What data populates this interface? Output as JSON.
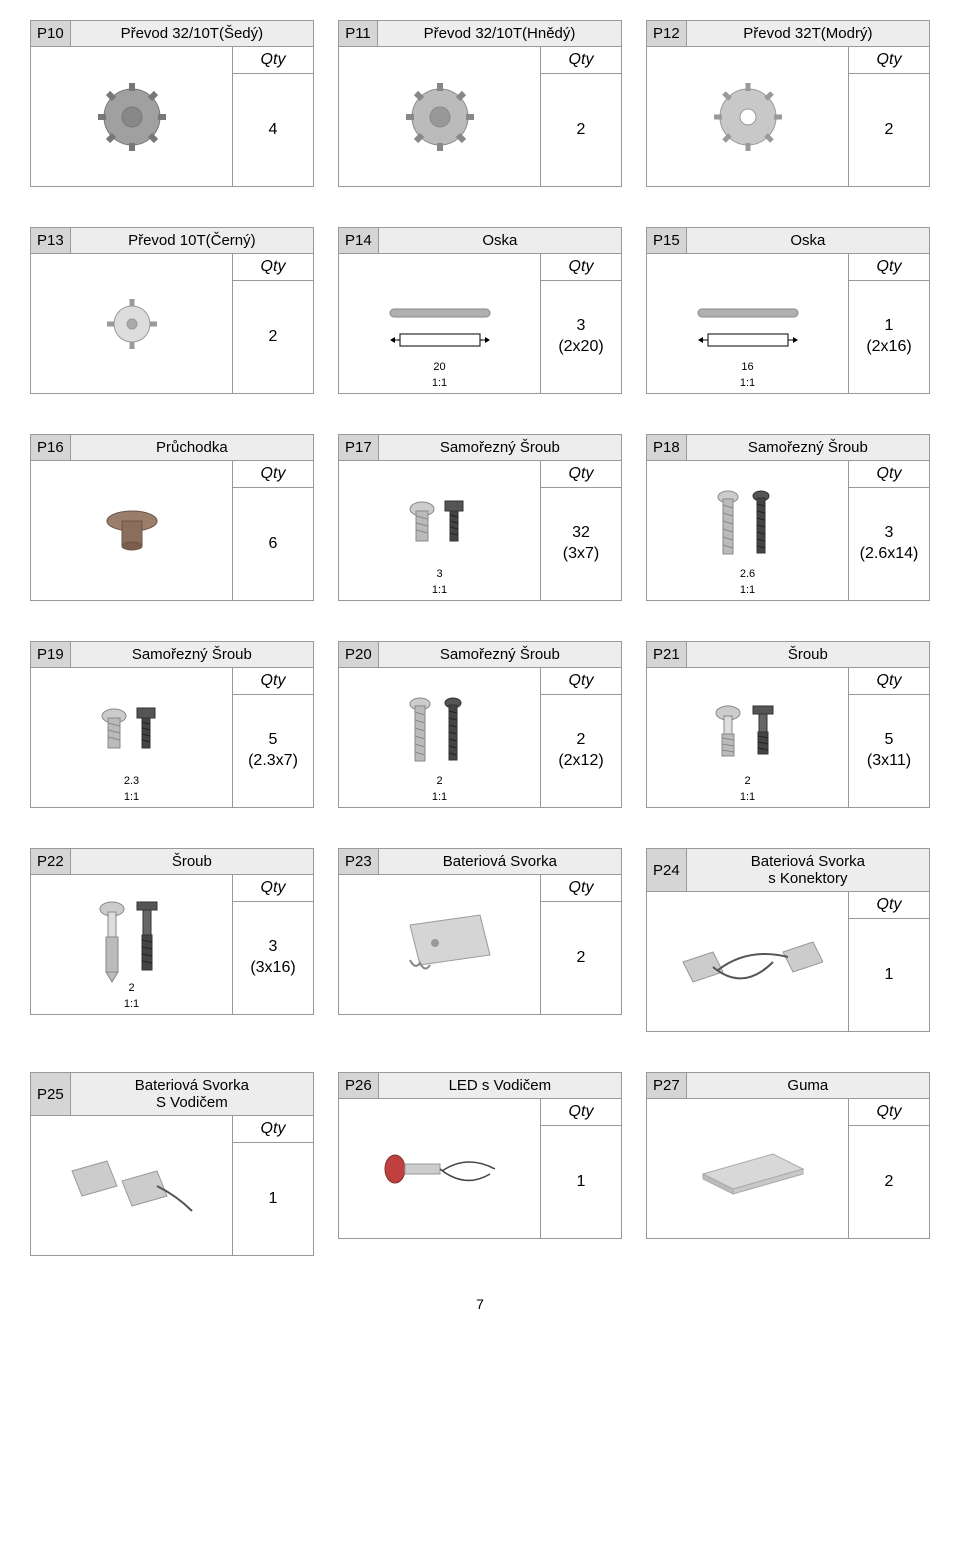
{
  "qty_label": "Qty",
  "page_number": "7",
  "parts": [
    {
      "id": "P10",
      "title": "Převod 32/10T(Šedý)",
      "qty": "4",
      "icon": "gear-gray",
      "dim": "",
      "scale": ""
    },
    {
      "id": "P11",
      "title": "Převod 32/10T(Hnědý)",
      "qty": "2",
      "icon": "gear-brown",
      "dim": "",
      "scale": ""
    },
    {
      "id": "P12",
      "title": "Převod 32T(Modrý)",
      "qty": "2",
      "icon": "gear-blue",
      "dim": "",
      "scale": ""
    },
    {
      "id": "P13",
      "title": "Převod 10T(Černý)",
      "qty": "2",
      "icon": "gear-small",
      "dim": "",
      "scale": ""
    },
    {
      "id": "P14",
      "title": "Oska",
      "qty": "3\n(2x20)",
      "icon": "axle",
      "dim": "20",
      "scale": "1:1"
    },
    {
      "id": "P15",
      "title": "Oska",
      "qty": "1\n(2x16)",
      "icon": "axle",
      "dim": "16",
      "scale": "1:1"
    },
    {
      "id": "P16",
      "title": "Průchodka",
      "qty": "6",
      "icon": "grommet",
      "dim": "",
      "scale": ""
    },
    {
      "id": "P17",
      "title": "Samořezný Šroub",
      "qty": "32\n(3x7)",
      "icon": "screw",
      "dim": "3",
      "scale": "1:1"
    },
    {
      "id": "P18",
      "title": "Samořezný Šroub",
      "qty": "3\n(2.6x14)",
      "icon": "screw-long",
      "dim": "2.6",
      "scale": "1:1"
    },
    {
      "id": "P19",
      "title": "Samořezný Šroub",
      "qty": "5\n(2.3x7)",
      "icon": "screw",
      "dim": "2.3",
      "scale": "1:1"
    },
    {
      "id": "P20",
      "title": "Samořezný Šroub",
      "qty": "2\n(2x12)",
      "icon": "screw-long",
      "dim": "2",
      "scale": "1:1"
    },
    {
      "id": "P21",
      "title": "Šroub",
      "qty": "5\n(3x11)",
      "icon": "bolt",
      "dim": "2",
      "scale": "1:1"
    },
    {
      "id": "P22",
      "title": "Šroub",
      "qty": "3\n(3x16)",
      "icon": "bolt-long",
      "dim": "2",
      "scale": "1:1"
    },
    {
      "id": "P23",
      "title": "Bateriová Svorka",
      "qty": "2",
      "icon": "battery-clip",
      "dim": "",
      "scale": ""
    },
    {
      "id": "P24",
      "title": "Bateriová Svorka\ns Konektory",
      "qty": "1",
      "icon": "battery-clip-wire",
      "dim": "",
      "scale": ""
    },
    {
      "id": "P25",
      "title": "Bateriová Svorka\nS Vodičem",
      "qty": "1",
      "icon": "battery-clip-lead",
      "dim": "",
      "scale": ""
    },
    {
      "id": "P26",
      "title": "LED s Vodičem",
      "qty": "1",
      "icon": "led",
      "dim": "",
      "scale": ""
    },
    {
      "id": "P27",
      "title": "Guma",
      "qty": "2",
      "icon": "rubber",
      "dim": "",
      "scale": ""
    }
  ],
  "icon_svg": {
    "gear-gray": "<svg width='80' height='80' viewBox='0 0 80 80'><g fill='#a0a0a0' stroke='#777'><circle cx='40' cy='40' r='28'/><circle cx='40' cy='40' r='10' fill='#888'/></g><g stroke='#777' stroke-width='6'><line x1='40' y1='6' x2='40' y2='14'/><line x1='40' y1='66' x2='40' y2='74'/><line x1='6' y1='40' x2='14' y2='40'/><line x1='66' y1='40' x2='74' y2='40'/><line x1='16' y1='16' x2='22' y2='22'/><line x1='58' y1='58' x2='64' y2='64'/><line x1='16' y1='64' x2='22' y2='58'/><line x1='58' y1='22' x2='64' y2='16'/></g></svg>",
    "gear-brown": "<svg width='80' height='80' viewBox='0 0 80 80'><g fill='#bbb' stroke='#888'><circle cx='40' cy='40' r='28'/><circle cx='40' cy='40' r='10' fill='#999'/></g><g stroke='#888' stroke-width='6'><line x1='40' y1='6' x2='40' y2='14'/><line x1='40' y1='66' x2='40' y2='74'/><line x1='6' y1='40' x2='14' y2='40'/><line x1='66' y1='40' x2='74' y2='40'/><line x1='16' y1='16' x2='22' y2='22'/><line x1='58' y1='58' x2='64' y2='64'/><line x1='16' y1='64' x2='22' y2='58'/><line x1='58' y1='22' x2='64' y2='16'/></g></svg>",
    "gear-blue": "<svg width='80' height='80' viewBox='0 0 80 80'><g fill='#c8c8c8' stroke='#999'><circle cx='40' cy='40' r='28'/><circle cx='40' cy='40' r='8' fill='#fff'/></g><g stroke='#999' stroke-width='5'><line x1='40' y1='6' x2='40' y2='14'/><line x1='40' y1='66' x2='40' y2='74'/><line x1='6' y1='40' x2='14' y2='40'/><line x1='66' y1='40' x2='74' y2='40'/><line x1='16' y1='16' x2='22' y2='22'/><line x1='58' y1='58' x2='64' y2='64'/><line x1='16' y1='64' x2='22' y2='58'/><line x1='58' y1='22' x2='64' y2='16'/></g></svg>",
    "gear-small": "<svg width='70' height='70' viewBox='0 0 70 70'><g fill='#ddd' stroke='#999'><circle cx='35' cy='35' r='18'/><circle cx='35' cy='35' r='5' fill='#aaa'/></g><g stroke='#999' stroke-width='5'><line x1='35' y1='10' x2='35' y2='17'/><line x1='35' y1='53' x2='35' y2='60'/><line x1='10' y1='35' x2='17' y2='35'/><line x1='53' y1='35' x2='60' y2='35'/></g></svg>",
    "axle": "<svg width='140' height='70' viewBox='0 0 140 70'><rect x='20' y='20' width='100' height='8' rx='4' fill='#b0b0b0' stroke='#888'/><rect x='30' y='45' width='80' height='12' fill='none' stroke='#000' stroke-width='1'/><line x1='25' y1='51' x2='30' y2='51' stroke='#000'/><line x1='110' y1='51' x2='115' y2='51' stroke='#000'/><polygon points='25,48 25,54 20,51' fill='#000'/><polygon points='115,48 115,54 120,51' fill='#000'/></svg>",
    "grommet": "<svg width='70' height='70' viewBox='0 0 70 70'><ellipse cx='35' cy='25' rx='25' ry='10' fill='#9a7d6b' stroke='#6b5545'/><rect x='25' y='25' width='20' height='25' fill='#8a6d5b' stroke='#6b5545'/><ellipse cx='35' cy='50' rx='10' ry='4' fill='#7a5d4b' stroke='#6b5545'/></svg>",
    "screw": "<svg width='100' height='80' viewBox='0 0 100 80'><g transform='translate(20,10)'><ellipse cx='12' cy='8' rx='12' ry='7' fill='#ccc' stroke='#888'/><rect x='6' y='10' width='12' height='30' fill='#bbb' stroke='#888'/><path d='M6 15 L18 18 M6 22 L18 25 M6 29 L18 32' stroke='#888' fill='none'/></g><g transform='translate(55,10)'><rect x='0' y='0' width='18' height='10' fill='#555' stroke='#333'/><rect x='5' y='10' width='8' height='30' fill='#444' stroke='#333'/><path d='M5 14 L13 16 M5 20 L13 22 M5 26 L13 28 M5 32 L13 34' stroke='#222' fill='none'/></g></svg>",
    "screw-long": "<svg width='100' height='90' viewBox='0 0 100 90'><g transform='translate(20,5)'><ellipse cx='10' cy='6' rx='10' ry='6' fill='#ccc' stroke='#888'/><rect x='5' y='8' width='10' height='55' fill='#bbb' stroke='#888'/><path d='M5 14 L15 17 M5 22 L15 25 M5 30 L15 33 M5 38 L15 41 M5 46 L15 49 M5 54 L15 57' stroke='#888' fill='none'/></g><g transform='translate(55,5)'><ellipse cx='8' cy='5' rx='8' ry='5' fill='#555' stroke='#333'/><rect x='4' y='7' width='8' height='55' fill='#444' stroke='#333'/><path d='M4 13 L12 15 M4 20 L12 22 M4 27 L12 29 M4 34 L12 36 M4 41 L12 43 M4 48 L12 50 M4 55 L12 57' stroke='#222' fill='none'/></g></svg>",
    "bolt": "<svg width='100' height='80' viewBox='0 0 100 80'><g transform='translate(18,8)'><ellipse cx='12' cy='7' rx='12' ry='7' fill='#ccc' stroke='#888'/><rect x='8' y='10' width='8' height='18' fill='#ddd' stroke='#888'/><rect x='6' y='28' width='12' height='22' fill='#bbb' stroke='#888'/><path d='M6 32 L18 34 M6 38 L18 40 M6 44 L18 46' stroke='#888' fill='none'/></g><g transform='translate(55,8)'><rect x='0' y='0' width='20' height='8' fill='#555' stroke='#333'/><rect x='6' y='8' width='8' height='18' fill='#666' stroke='#333'/><rect x='5' y='26' width='10' height='22' fill='#444' stroke='#333'/><path d='M5 30 L15 32 M5 36 L15 38 M5 42 L15 44' stroke='#222' fill='none'/></g></svg>",
    "bolt-long": "<svg width='100' height='95' viewBox='0 0 100 95'><g transform='translate(18,5)'><ellipse cx='12' cy='7' rx='12' ry='7' fill='#ccc' stroke='#888'/><rect x='8' y='10' width='8' height='25' fill='#ddd' stroke='#888'/><rect x='6' y='35' width='12' height='35' fill='#bbb' stroke='#888'/><polygon points='6,70 18,70 12,80' fill='#bbb' stroke='#888'/></g><g transform='translate(55,5)'><rect x='0' y='0' width='20' height='8' fill='#555' stroke='#333'/><rect x='6' y='8' width='8' height='25' fill='#666' stroke='#333'/><rect x='5' y='33' width='10' height='35' fill='#444' stroke='#333'/><path d='M5 38 L15 40 M5 45 L15 47 M5 52 L15 54 M5 59 L15 61' stroke='#222' fill='none'/></g></svg>",
    "battery-clip": "<svg width='120' height='80' viewBox='0 0 120 80'><polygon points='30,20 100,10 110,50 40,60' fill='#d5d5d5' stroke='#999'/><circle cx='55' cy='38' r='4' fill='#999'/><path d='M30 55 Q35 65 40 58 Q45 68 50 60' fill='none' stroke='#888' stroke-width='2'/></svg>",
    "battery-clip-wire": "<svg width='150' height='80' viewBox='0 0 150 80'><polygon points='10,40 40,30 50,50 20,60' fill='#ccc' stroke='#999'/><polygon points='110,30 140,20 150,40 120,50' fill='#ccc' stroke='#999'/><path d='M40 45 Q70 70 100 40 M45 48 Q75 25 115 35' fill='none' stroke='#555' stroke-width='2'/></svg>",
    "battery-clip-lead": "<svg width='140' height='80' viewBox='0 0 140 80'><polygon points='10,25 45,15 55,40 20,50' fill='#ccc' stroke='#999'/><polygon points='60,35 95,25 105,50 70,60' fill='#ccc' stroke='#999'/><path d='M95 40 Q115 50 130 65' fill='none' stroke='#555' stroke-width='2'/></svg>",
    "led": "<svg width='140' height='70' viewBox='0 0 140 70'><ellipse cx='25' cy='35' rx='10' ry='14' fill='#c04040' stroke='#803030'/><rect x='35' y='30' width='35' height='10' fill='#ccc' stroke='#999'/><path d='M70 35 Q95 55 120 40 M72 37 Q97 20 125 35' fill='none' stroke='#444' stroke-width='1.5'/></svg>",
    "rubber": "<svg width='130' height='60' viewBox='0 0 130 60'><polygon points='20,35 90,15 120,30 50,50' fill='#d8d8d8' stroke='#aaa'/><polygon points='20,35 50,50 50,55 20,40' fill='#bbb' stroke='#aaa'/><polygon points='50,50 120,30 120,35 50,55' fill='#c8c8c8' stroke='#aaa'/></svg>"
  }
}
